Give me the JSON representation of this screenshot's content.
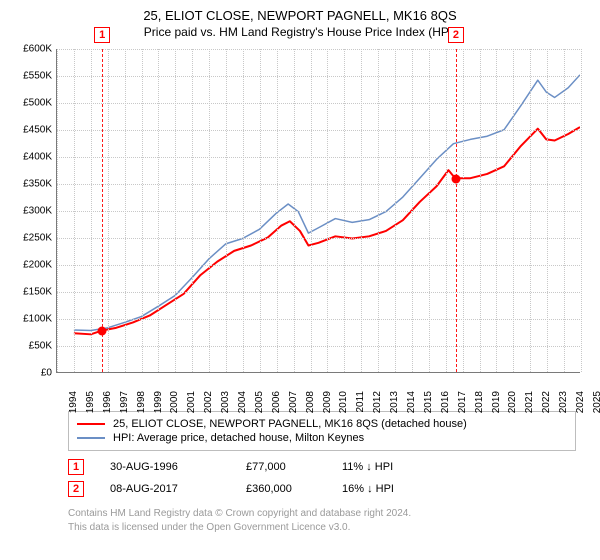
{
  "title": "25, ELIOT CLOSE, NEWPORT PAGNELL, MK16 8QS",
  "subtitle": "Price paid vs. HM Land Registry's House Price Index (HPI)",
  "chart": {
    "type": "line",
    "background_color": "#ffffff",
    "grid_color": "#c8c8c8",
    "axis_color": "#7a7a7a",
    "ylim": [
      0,
      600000
    ],
    "ytick_step": 50000,
    "yticks": [
      "£0",
      "£50K",
      "£100K",
      "£150K",
      "£200K",
      "£250K",
      "£300K",
      "£350K",
      "£400K",
      "£450K",
      "£500K",
      "£550K",
      "£600K"
    ],
    "xlim": [
      1994,
      2025
    ],
    "xticks": [
      1994,
      1995,
      1996,
      1997,
      1998,
      1999,
      2000,
      2001,
      2002,
      2003,
      2004,
      2005,
      2006,
      2007,
      2008,
      2009,
      2010,
      2011,
      2012,
      2013,
      2014,
      2015,
      2016,
      2017,
      2018,
      2019,
      2020,
      2021,
      2022,
      2023,
      2024,
      2025
    ],
    "label_fontsize": 10,
    "title_fontsize": 13,
    "series": [
      {
        "name": "25, ELIOT CLOSE, NEWPORT PAGNELL, MK16 8QS (detached house)",
        "color": "#ff0000",
        "line_width": 2,
        "points": [
          [
            1995.0,
            72000
          ],
          [
            1996.0,
            70000
          ],
          [
            1996.67,
            77000
          ],
          [
            1997.5,
            82000
          ],
          [
            1998.5,
            92000
          ],
          [
            1999.5,
            105000
          ],
          [
            2000.5,
            125000
          ],
          [
            2001.5,
            145000
          ],
          [
            2002.5,
            180000
          ],
          [
            2003.5,
            205000
          ],
          [
            2004.5,
            225000
          ],
          [
            2005.5,
            235000
          ],
          [
            2006.5,
            250000
          ],
          [
            2007.3,
            272000
          ],
          [
            2007.8,
            280000
          ],
          [
            2008.4,
            262000
          ],
          [
            2008.9,
            235000
          ],
          [
            2009.5,
            240000
          ],
          [
            2010.5,
            252000
          ],
          [
            2011.5,
            248000
          ],
          [
            2012.5,
            252000
          ],
          [
            2013.5,
            262000
          ],
          [
            2014.5,
            282000
          ],
          [
            2015.5,
            316000
          ],
          [
            2016.5,
            345000
          ],
          [
            2017.2,
            375000
          ],
          [
            2017.6,
            360000
          ],
          [
            2018.5,
            360000
          ],
          [
            2019.5,
            368000
          ],
          [
            2020.5,
            382000
          ],
          [
            2021.5,
            420000
          ],
          [
            2022.5,
            452000
          ],
          [
            2023.0,
            432000
          ],
          [
            2023.5,
            430000
          ],
          [
            2024.3,
            442000
          ],
          [
            2025.0,
            455000
          ]
        ]
      },
      {
        "name": "HPI: Average price, detached house, Milton Keynes",
        "color": "#6b8fc5",
        "line_width": 1.5,
        "points": [
          [
            1995.0,
            78000
          ],
          [
            1996.0,
            77000
          ],
          [
            1997.0,
            82000
          ],
          [
            1998.0,
            92000
          ],
          [
            1999.0,
            103000
          ],
          [
            2000.0,
            122000
          ],
          [
            2001.0,
            142000
          ],
          [
            2002.0,
            175000
          ],
          [
            2003.0,
            210000
          ],
          [
            2004.0,
            238000
          ],
          [
            2005.0,
            248000
          ],
          [
            2006.0,
            265000
          ],
          [
            2007.0,
            295000
          ],
          [
            2007.7,
            312000
          ],
          [
            2008.3,
            298000
          ],
          [
            2008.9,
            258000
          ],
          [
            2009.5,
            268000
          ],
          [
            2010.5,
            285000
          ],
          [
            2011.5,
            278000
          ],
          [
            2012.5,
            283000
          ],
          [
            2013.5,
            298000
          ],
          [
            2014.5,
            325000
          ],
          [
            2015.5,
            360000
          ],
          [
            2016.5,
            395000
          ],
          [
            2017.5,
            424000
          ],
          [
            2018.5,
            432000
          ],
          [
            2019.5,
            438000
          ],
          [
            2020.5,
            450000
          ],
          [
            2021.5,
            495000
          ],
          [
            2022.5,
            542000
          ],
          [
            2023.0,
            520000
          ],
          [
            2023.5,
            510000
          ],
          [
            2024.3,
            528000
          ],
          [
            2025.0,
            552000
          ]
        ]
      }
    ],
    "sale_markers": [
      {
        "idx": "1",
        "x": 1996.67,
        "y": 77000
      },
      {
        "idx": "2",
        "x": 2017.6,
        "y": 360000
      }
    ],
    "marker_color": "#ff0000",
    "marker_dash": "4 3"
  },
  "legend": {
    "items": [
      {
        "label": "25, ELIOT CLOSE, NEWPORT PAGNELL, MK16 8QS (detached house)",
        "color": "#ff0000"
      },
      {
        "label": "HPI: Average price, detached house, Milton Keynes",
        "color": "#6b8fc5"
      }
    ]
  },
  "sales": [
    {
      "idx": "1",
      "date": "30-AUG-1996",
      "price": "£77,000",
      "hpi": "11% ↓ HPI"
    },
    {
      "idx": "2",
      "date": "08-AUG-2017",
      "price": "£360,000",
      "hpi": "16% ↓ HPI"
    }
  ],
  "footer_line1": "Contains HM Land Registry data © Crown copyright and database right 2024.",
  "footer_line2": "This data is licensed under the Open Government Licence v3.0."
}
